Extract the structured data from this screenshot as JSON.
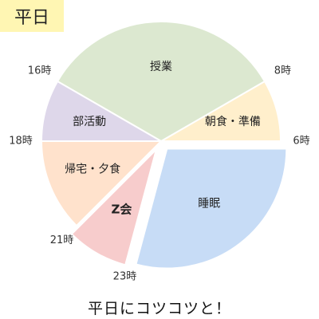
{
  "title": "平日",
  "caption": "平日にコツコツと！",
  "chart_data": {
    "type": "pie",
    "hours_per_day": 24,
    "start_hour": 6,
    "direction": "counterclockwise",
    "slices": [
      {
        "label": "朝食・準備",
        "start": 6,
        "end": 8,
        "color": "#ffefcc",
        "exploded": false,
        "bold": false
      },
      {
        "label": "授業",
        "start": 8,
        "end": 16,
        "color": "#dce8d0",
        "exploded": false,
        "bold": false
      },
      {
        "label": "部活動",
        "start": 16,
        "end": 18,
        "color": "#ded7ea",
        "exploded": false,
        "bold": false
      },
      {
        "label": "帰宅・夕食",
        "start": 18,
        "end": 21,
        "color": "#ffe2cc",
        "exploded": false,
        "bold": false
      },
      {
        "label": "Z会",
        "start": 21,
        "end": 23,
        "color": "#f7cccc",
        "exploded": true,
        "bold": true
      },
      {
        "label": "睡眠",
        "start": 23,
        "end": 30,
        "color": "#c7dcf6",
        "exploded": true,
        "bold": false
      }
    ],
    "hour_labels": [
      "6時",
      "8時",
      "16時",
      "18時",
      "21時",
      "23時"
    ]
  }
}
